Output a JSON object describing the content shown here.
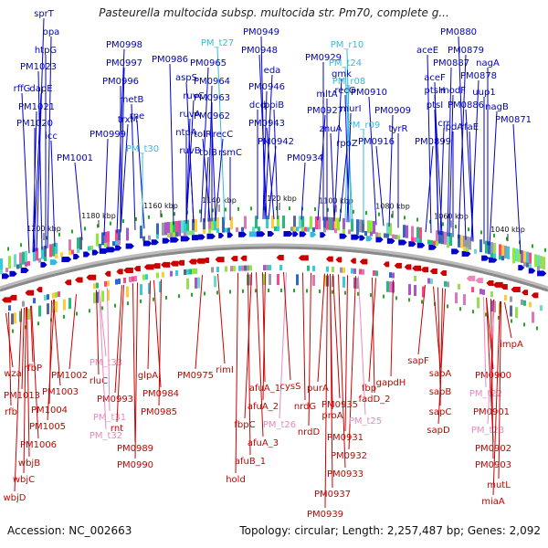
{
  "title": "Pasteurella multocida subsp. multocida str. Pm70, complete g...",
  "footer": {
    "accession": "Accession: NC_002663",
    "summary": "Topology: circular; Length: 2,257,487 bp; Genes: 2,092"
  },
  "kbp_ticks": [
    "1200 kbp",
    "1180 kbp",
    "1160 kbp",
    "1140 kbp",
    "1120 kbp",
    "1100 kbp",
    "1080 kbp",
    "1060 kbp",
    "1040 kbp"
  ],
  "colors": {
    "forward_gene": "#0000cc",
    "forward_rna": "#33bbdd",
    "reverse_gene": "#cc0000",
    "reverse_rna": "#ee88bb",
    "backbone": "#888888",
    "tick": "#22aa22"
  },
  "forward_labels": [
    {
      "text": "sprT",
      "type": "gene"
    },
    {
      "text": "opa",
      "type": "gene"
    },
    {
      "text": "htpG",
      "type": "gene"
    },
    {
      "text": "PM1023",
      "type": "gene"
    },
    {
      "text": "rffG",
      "type": "gene"
    },
    {
      "text": "dapE",
      "type": "gene"
    },
    {
      "text": "PM1021",
      "type": "gene"
    },
    {
      "text": "PM1020",
      "type": "gene"
    },
    {
      "text": "icc",
      "type": "gene"
    },
    {
      "text": "PM1001",
      "type": "gene"
    },
    {
      "text": "PM0998",
      "type": "gene"
    },
    {
      "text": "PM0997",
      "type": "gene"
    },
    {
      "text": "PM0996",
      "type": "gene"
    },
    {
      "text": "metB",
      "type": "gene"
    },
    {
      "text": "rne",
      "type": "gene"
    },
    {
      "text": "trxM",
      "type": "gene"
    },
    {
      "text": "PM0999",
      "type": "gene"
    },
    {
      "text": "PM_t30",
      "type": "rna"
    },
    {
      "text": "PM0986",
      "type": "gene"
    },
    {
      "text": "aspS",
      "type": "gene"
    },
    {
      "text": "ruvC",
      "type": "gene"
    },
    {
      "text": "ruvA",
      "type": "gene"
    },
    {
      "text": "ntpA",
      "type": "gene"
    },
    {
      "text": "ruvB",
      "type": "gene"
    },
    {
      "text": "PM_t27",
      "type": "rna"
    },
    {
      "text": "PM0965",
      "type": "gene"
    },
    {
      "text": "PM0964",
      "type": "gene"
    },
    {
      "text": "PM0963",
      "type": "gene"
    },
    {
      "text": "PM0962",
      "type": "gene"
    },
    {
      "text": "tolR",
      "type": "gene"
    },
    {
      "text": "recC",
      "type": "gene"
    },
    {
      "text": "tolB",
      "type": "gene"
    },
    {
      "text": "rsmC",
      "type": "gene"
    },
    {
      "text": "PM0949",
      "type": "gene"
    },
    {
      "text": "PM0948",
      "type": "gene"
    },
    {
      "text": "eda",
      "type": "gene"
    },
    {
      "text": "PM0946",
      "type": "gene"
    },
    {
      "text": "dcd",
      "type": "gene"
    },
    {
      "text": "ppiB",
      "type": "gene"
    },
    {
      "text": "PM0943",
      "type": "gene"
    },
    {
      "text": "PM0942",
      "type": "gene"
    },
    {
      "text": "PM0934",
      "type": "gene"
    },
    {
      "text": "PM0929",
      "type": "gene"
    },
    {
      "text": "PM_r10",
      "type": "rna"
    },
    {
      "text": "PM_t24",
      "type": "rna"
    },
    {
      "text": "gmk",
      "type": "gene"
    },
    {
      "text": "PM_r08",
      "type": "rna"
    },
    {
      "text": "mltA",
      "type": "gene"
    },
    {
      "text": "recG",
      "type": "gene"
    },
    {
      "text": "PM0910",
      "type": "gene"
    },
    {
      "text": "PM0927",
      "type": "gene"
    },
    {
      "text": "murI",
      "type": "gene"
    },
    {
      "text": "PM_r09",
      "type": "rna"
    },
    {
      "text": "znuA",
      "type": "gene"
    },
    {
      "text": "PM0916",
      "type": "gene"
    },
    {
      "text": "rpoZ",
      "type": "gene"
    },
    {
      "text": "PM0909",
      "type": "gene"
    },
    {
      "text": "tyrR",
      "type": "gene"
    },
    {
      "text": "aceE",
      "type": "gene"
    },
    {
      "text": "PM0880",
      "type": "gene"
    },
    {
      "text": "PM0879",
      "type": "gene"
    },
    {
      "text": "PM0887",
      "type": "gene"
    },
    {
      "text": "nagA",
      "type": "gene"
    },
    {
      "text": "aceF",
      "type": "gene"
    },
    {
      "text": "ptsH",
      "type": "gene"
    },
    {
      "text": "PM0878",
      "type": "gene"
    },
    {
      "text": "modF",
      "type": "gene"
    },
    {
      "text": "uup1",
      "type": "gene"
    },
    {
      "text": "ptsI",
      "type": "gene"
    },
    {
      "text": "PM0886",
      "type": "gene"
    },
    {
      "text": "nagB",
      "type": "gene"
    },
    {
      "text": "crr",
      "type": "gene"
    },
    {
      "text": "lpdA",
      "type": "gene"
    },
    {
      "text": "rfaE",
      "type": "gene"
    },
    {
      "text": "PM0871",
      "type": "gene"
    },
    {
      "text": "PM0899",
      "type": "gene"
    }
  ],
  "reverse_labels": [
    {
      "text": "wza",
      "type": "gene"
    },
    {
      "text": "rfbP",
      "type": "gene"
    },
    {
      "text": "PM1013",
      "type": "gene"
    },
    {
      "text": "PM1002",
      "type": "gene"
    },
    {
      "text": "PM1003",
      "type": "gene"
    },
    {
      "text": "rfb",
      "type": "gene"
    },
    {
      "text": "PM1004",
      "type": "gene"
    },
    {
      "text": "PM1005",
      "type": "gene"
    },
    {
      "text": "PM1006",
      "type": "gene"
    },
    {
      "text": "wbjB",
      "type": "gene"
    },
    {
      "text": "wbjC",
      "type": "gene"
    },
    {
      "text": "wbjD",
      "type": "gene"
    },
    {
      "text": "PM_t33",
      "type": "rna"
    },
    {
      "text": "rluC",
      "type": "gene"
    },
    {
      "text": "glpA",
      "type": "gene"
    },
    {
      "text": "PM0993",
      "type": "gene"
    },
    {
      "text": "PM0984",
      "type": "gene"
    },
    {
      "text": "PM_t31",
      "type": "rna"
    },
    {
      "text": "PM0985",
      "type": "gene"
    },
    {
      "text": "rnt",
      "type": "gene"
    },
    {
      "text": "PM_t32",
      "type": "rna"
    },
    {
      "text": "PM0989",
      "type": "gene"
    },
    {
      "text": "PM0990",
      "type": "gene"
    },
    {
      "text": "PM0975",
      "type": "gene"
    },
    {
      "text": "rimI",
      "type": "gene"
    },
    {
      "text": "afuA_1",
      "type": "gene"
    },
    {
      "text": "afuA_2",
      "type": "gene"
    },
    {
      "text": "fbpC",
      "type": "gene"
    },
    {
      "text": "afuA_3",
      "type": "gene"
    },
    {
      "text": "afuB_1",
      "type": "gene"
    },
    {
      "text": "hold",
      "type": "gene"
    },
    {
      "text": "PM_t26",
      "type": "rna"
    },
    {
      "text": "cysS",
      "type": "gene"
    },
    {
      "text": "nrdG",
      "type": "gene"
    },
    {
      "text": "nrdD",
      "type": "gene"
    },
    {
      "text": "purA",
      "type": "gene"
    },
    {
      "text": "PM0935",
      "type": "gene"
    },
    {
      "text": "proA",
      "type": "gene"
    },
    {
      "text": "PM0931",
      "type": "gene"
    },
    {
      "text": "PM0932",
      "type": "gene"
    },
    {
      "text": "PM0933",
      "type": "gene"
    },
    {
      "text": "PM0937",
      "type": "gene"
    },
    {
      "text": "PM0939",
      "type": "gene"
    },
    {
      "text": "fbp",
      "type": "gene"
    },
    {
      "text": "PM_t25",
      "type": "rna"
    },
    {
      "text": "fadD_2",
      "type": "gene"
    },
    {
      "text": "gapdH",
      "type": "gene"
    },
    {
      "text": "sapF",
      "type": "gene"
    },
    {
      "text": "sapA",
      "type": "gene"
    },
    {
      "text": "sapB",
      "type": "gene"
    },
    {
      "text": "sapC",
      "type": "gene"
    },
    {
      "text": "sapD",
      "type": "gene"
    },
    {
      "text": "PM0900",
      "type": "gene"
    },
    {
      "text": "PM_t22",
      "type": "rna"
    },
    {
      "text": "PM0901",
      "type": "gene"
    },
    {
      "text": "PM_t23",
      "type": "rna"
    },
    {
      "text": "PM0902",
      "type": "gene"
    },
    {
      "text": "PM0903",
      "type": "gene"
    },
    {
      "text": "mutL",
      "type": "gene"
    },
    {
      "text": "miaA",
      "type": "gene"
    },
    {
      "text": "impA",
      "type": "gene"
    }
  ]
}
